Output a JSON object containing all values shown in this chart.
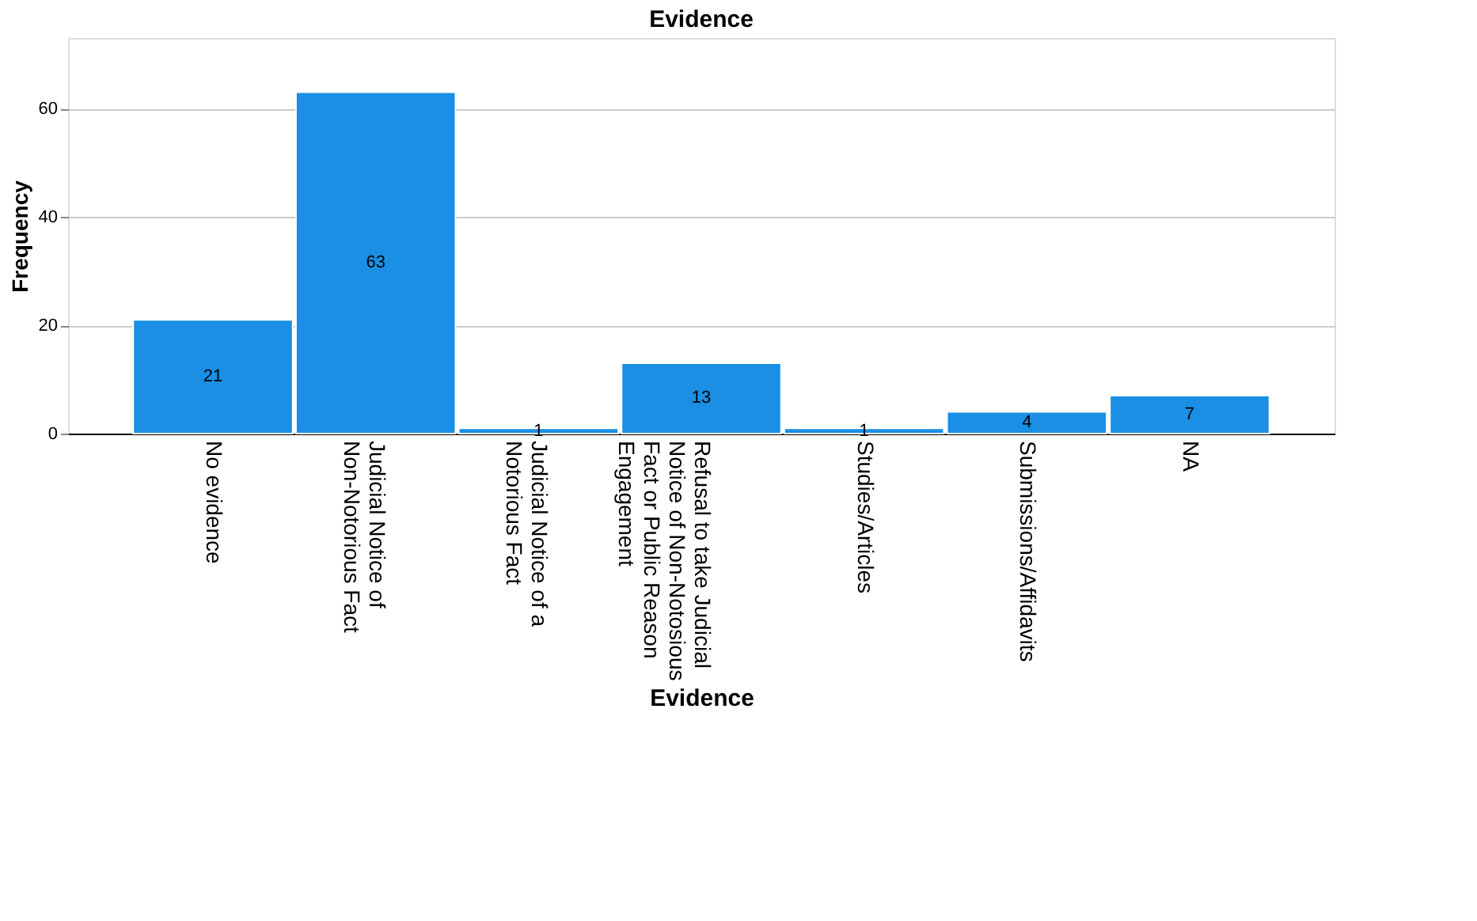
{
  "chart_data": {
    "type": "bar",
    "title": "Evidence",
    "xlabel": "Evidence",
    "ylabel": "Frequency",
    "categories": [
      "No evidence",
      "Judicial Notice of Non-Notorious Fact",
      "Judicial Notice of a Notorious Fact",
      "Refusal to take Judicial Notice of Non-Notosious Fact or Public Reason Engagement",
      "Studies/Articles",
      "Submissions/Affidavits",
      "NA"
    ],
    "values": [
      21,
      63,
      1,
      13,
      1,
      4,
      7
    ],
    "color": "#1a8fe3",
    "ylim": [
      0,
      73
    ],
    "yticks": [
      0,
      20,
      40,
      60
    ],
    "grid": "y",
    "data_labels": true
  }
}
